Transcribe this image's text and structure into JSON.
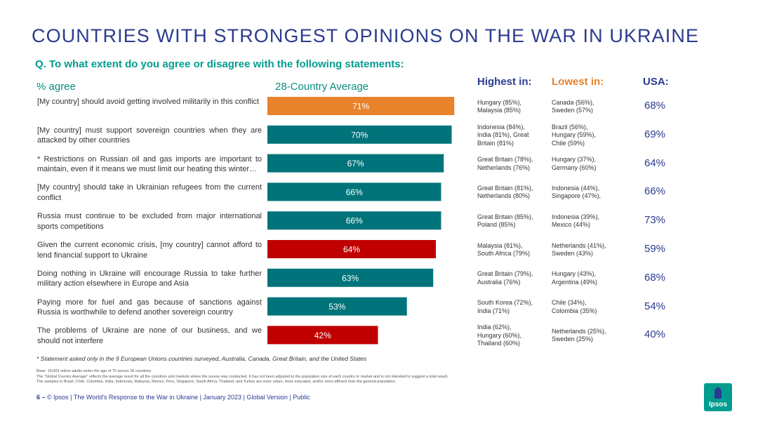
{
  "title": "COUNTRIES WITH STRONGEST OPINIONS ON THE WAR IN UKRAINE",
  "question": "Q. To what extent do you agree or disagree with the following statements:",
  "labels": {
    "pct_agree": "% agree",
    "average": "28-Country Average",
    "highest": "Highest in:",
    "lowest": "Lowest in:",
    "usa": "USA:"
  },
  "colors": {
    "title": "#2b3b8e",
    "accent_teal": "#00747a",
    "accent_orange": "#e8822b",
    "accent_red": "#c00000"
  },
  "chart_data": {
    "type": "bar",
    "orientation": "horizontal",
    "title": "28-Country Average",
    "xlim": [
      0,
      100
    ],
    "unit": "%",
    "categories": [
      "[My country] should avoid getting involved militarily in this conflict",
      "[My country] must support sovereign countries when they are attacked by other countries",
      "* Restrictions on Russian oil and gas imports are important to maintain, even if it means we must limit our heating this winter…",
      "[My country] should take in Ukrainian refugees from the current conflict",
      "Russia must continue to be excluded from major international sports competitions",
      "Given the current economic crisis, [my country] cannot afford to lend financial support to Ukraine",
      "Doing nothing in Ukraine will encourage Russia to take further military action elsewhere in Europe and Asia",
      "Paying more for fuel and gas because of sanctions against Russia is worthwhile to defend another sovereign country",
      "The problems of Ukraine are none of our business, and we should not interfere"
    ],
    "values": [
      71,
      70,
      67,
      66,
      66,
      64,
      63,
      53,
      42
    ],
    "value_labels": [
      "71%",
      "70%",
      "67%",
      "66%",
      "66%",
      "64%",
      "63%",
      "53%",
      "42%"
    ],
    "bar_colors": [
      "#e8822b",
      "#00747a",
      "#00747a",
      "#00747a",
      "#00747a",
      "#c00000",
      "#00747a",
      "#00747a",
      "#c00000"
    ]
  },
  "rows": [
    {
      "highest": [
        "Hungary (85%),",
        "Malaysia (85%)"
      ],
      "lowest": [
        "Canada (56%),",
        "Sweden (57%)"
      ],
      "usa": "68%"
    },
    {
      "highest": [
        "Indonesia (84%),",
        "India (81%), Great",
        "Britain (81%)"
      ],
      "lowest": [
        "Brazil (56%),",
        "Hungary (59%),",
        "Chile (59%)"
      ],
      "usa": "69%"
    },
    {
      "highest": [
        "Great Britain (78%),",
        "Netherlands (76%)"
      ],
      "lowest": [
        "Hungary (37%),",
        "Germany (60%)"
      ],
      "usa": "64%"
    },
    {
      "highest": [
        "Great Britain (81%),",
        "Netherlands (80%)"
      ],
      "lowest": [
        "Indonesia (44%),",
        "Singapore (47%),"
      ],
      "usa": "66%"
    },
    {
      "highest": [
        "Great Britain (85%),",
        "Poland (85%)"
      ],
      "lowest": [
        "Indonesia (39%),",
        "Mexico (44%)"
      ],
      "usa": "73%"
    },
    {
      "highest": [
        "Malaysia (81%),",
        "South Africa (79%)"
      ],
      "lowest": [
        "Netherlands (41%),",
        "Sweden (43%)"
      ],
      "usa": "59%"
    },
    {
      "highest": [
        "Great Britain (79%),",
        "Australia (76%)"
      ],
      "lowest": [
        "Hungary (43%),",
        "Argentina (49%)"
      ],
      "usa": "68%"
    },
    {
      "highest": [
        "South Korea (72%),",
        "India (71%)"
      ],
      "lowest": [
        "Chile (34%),",
        "Colombia (35%)"
      ],
      "usa": "54%"
    },
    {
      "highest": [
        "India (62%),",
        "Hungary (60%),",
        "Thailand (60%)"
      ],
      "lowest": [
        "Netherlands (25%),",
        "Sweden (25%)"
      ],
      "usa": "40%"
    }
  ],
  "footnote": "* Statement asked only in the 9 European Unions countries surveyed, Australia, Canada, Great Britain, and the United States",
  "base_notes": [
    "Base: 19,003 online adults under the age of 75 across 28 countries",
    "The \"Global Country Average\" reflects the average result for all the countries and markets where the survey was conducted. It has not been adjusted to the population size of each country or market and is not intended to suggest a total result.",
    "The samples in Brazil, Chile, Colombia, India, Indonesia, Malaysia, Mexico, Peru, Singapore, South Africa, Thailand, and Turkey are more urban, more educated, and/or more affluent than the general population."
  ],
  "footer": {
    "page": "6 –",
    "text": "© Ipsos | The World's Response to the War in Ukraine | January 2023 | Global Version | Public"
  },
  "logo": "Ipsos"
}
